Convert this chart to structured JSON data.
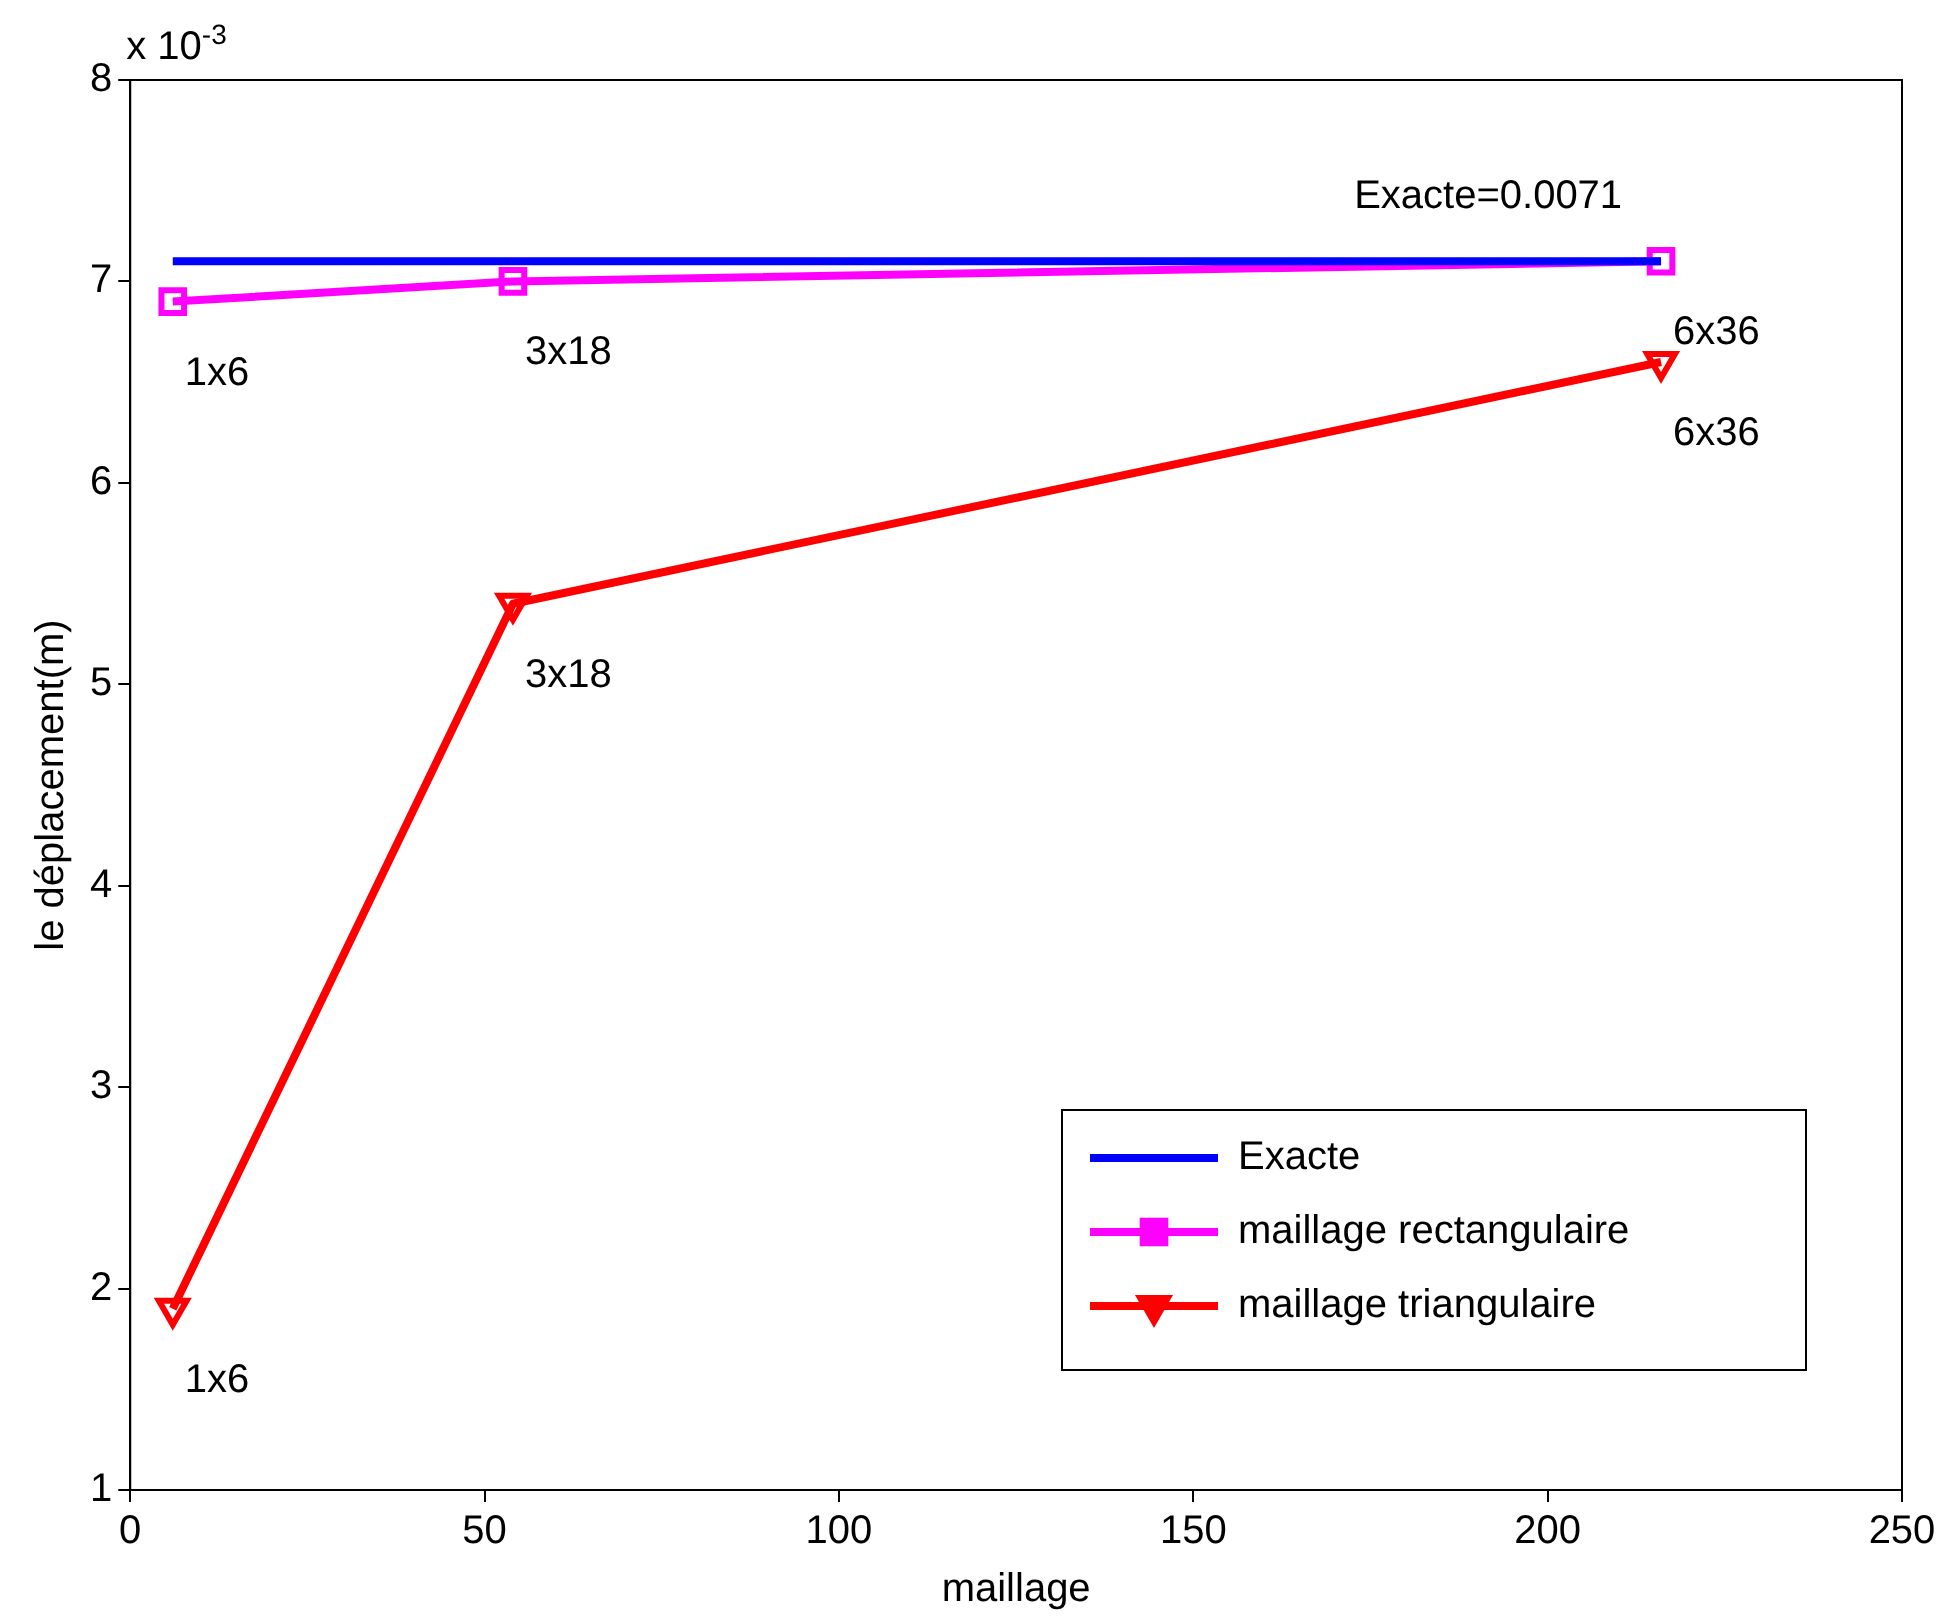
{
  "chart_data": {
    "type": "line",
    "xlabel": "maillage",
    "ylabel": "le déplacement(m)",
    "xlim": [
      0,
      250
    ],
    "xticks": [
      0,
      50,
      100,
      150,
      200,
      250
    ],
    "ylim": [
      1,
      8
    ],
    "yticks": [
      1,
      2,
      3,
      4,
      5,
      6,
      7,
      8
    ],
    "grid": false,
    "legend": "bottom right",
    "line_style": "solid",
    "series": [
      {
        "name": "Exacte",
        "color": "#0000ff",
        "x": [
          6,
          216
        ],
        "values": [
          7.1,
          7.1
        ],
        "marker": "none"
      },
      {
        "name": "maillage rectangulaire",
        "color": "#ff00ff",
        "x": [
          6,
          54,
          216
        ],
        "values": [
          6.9,
          7.0,
          7.1
        ],
        "marker": "square"
      },
      {
        "name": "maillage triangulaire",
        "color": "#ff0000",
        "x": [
          6,
          54,
          216
        ],
        "values": [
          1.9,
          5.4,
          6.6
        ],
        "marker": "triangle"
      }
    ],
    "annotations": [
      "x 10$^{-3}$",
      {
        "text": "Exacte=0.0071",
        "x": 171,
        "y": 7.1
      },
      {
        "text": "1x6",
        "x": 6,
        "y": 6.9
      },
      {
        "text": "3x18",
        "x": 54,
        "y": 7.0
      },
      {
        "text": "6x36",
        "x": 216,
        "y": 7.1
      },
      {
        "text": "6x36",
        "x": 216,
        "y": 6.6
      },
      {
        "text": "3x18",
        "x": 54,
        "y": 5.4
      },
      {
        "text": "1x6",
        "x": 6,
        "y": 1.9
      }
    ]
  }
}
